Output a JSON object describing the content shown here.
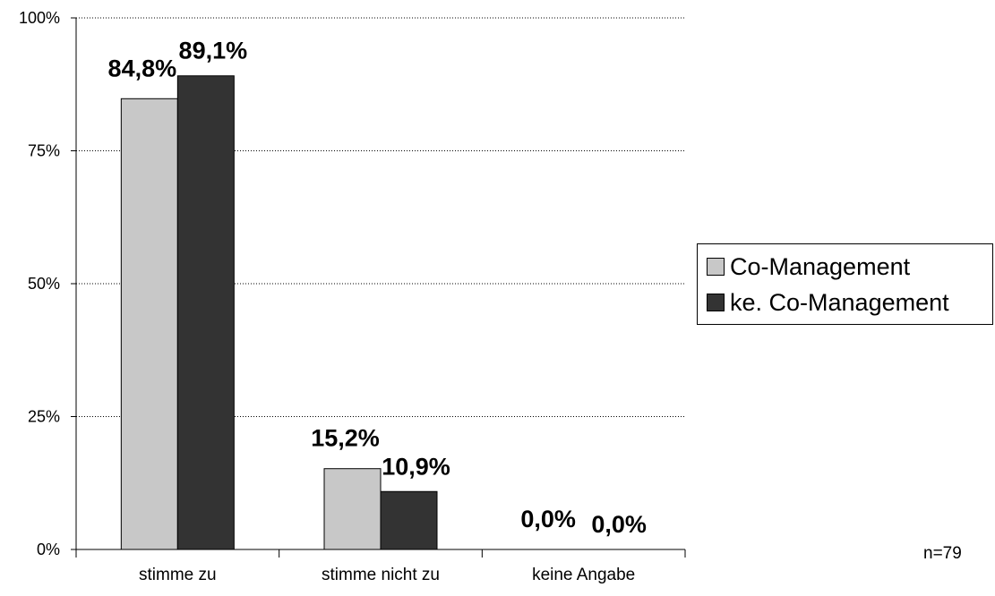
{
  "chart_data": {
    "type": "bar",
    "categories": [
      "stimme zu",
      "stimme nicht zu",
      "keine Angabe"
    ],
    "series": [
      {
        "name": "Co-Management",
        "values": [
          84.8,
          15.2,
          0.0
        ],
        "labels": [
          "84,8%",
          "15,2%",
          "0,0%"
        ],
        "color": "#c8c8c8"
      },
      {
        "name": "ke. Co-Management",
        "values": [
          89.1,
          10.9,
          0.0
        ],
        "labels": [
          "89,1%",
          "10,9%",
          "0,0%"
        ],
        "color": "#333333"
      }
    ],
    "yticks": [
      "0%",
      "25%",
      "50%",
      "75%",
      "100%"
    ],
    "ylim": [
      0,
      100
    ],
    "grid": "dotted horizontal",
    "legend_position": "right",
    "note": "n=79"
  }
}
